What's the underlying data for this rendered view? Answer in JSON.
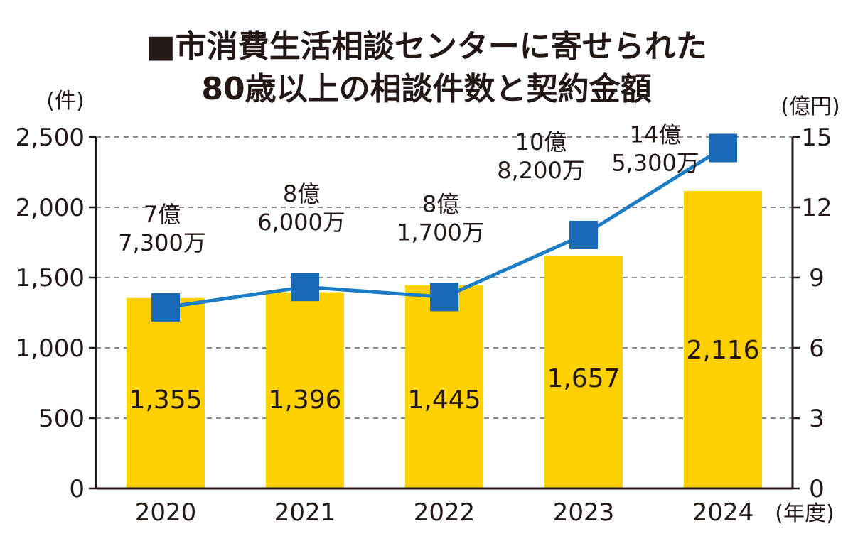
{
  "chart_data": {
    "type": "bar+line",
    "title_lines": [
      "■市消費生活相談センターに寄せられた",
      "80歳以上の相談件数と契約金額"
    ],
    "categories": [
      "2020",
      "2021",
      "2022",
      "2023",
      "2024"
    ],
    "xlabel": "(年度)",
    "ylabel_left": "(件)",
    "ylabel_right": "(億円)",
    "ylim_left": [
      0,
      2500
    ],
    "yticks_left": [
      "0",
      "500",
      "1,000",
      "1,500",
      "2,000",
      "2,500"
    ],
    "ylim_right": [
      0,
      15
    ],
    "yticks_right": [
      "0",
      "3",
      "6",
      "9",
      "12",
      "15"
    ],
    "grid": true,
    "series": [
      {
        "name": "相談件数",
        "type": "bar",
        "axis": "left",
        "color": "#FFD100",
        "values": [
          1355,
          1396,
          1445,
          1657,
          2116
        ],
        "labels": [
          "1,355",
          "1,396",
          "1,445",
          "1,657",
          "2,116"
        ]
      },
      {
        "name": "契約金額",
        "type": "line",
        "axis": "right",
        "color": "#1C7DC4",
        "marker_color": "#1769B5",
        "values": [
          7.73,
          8.6,
          8.17,
          10.82,
          14.53
        ],
        "labels": [
          [
            "7億",
            "7,300万"
          ],
          [
            "8億",
            "6,000万"
          ],
          [
            "8億",
            "1,700万"
          ],
          [
            "10億",
            "8,200万"
          ],
          [
            "14億",
            "5,300万"
          ]
        ]
      }
    ]
  }
}
